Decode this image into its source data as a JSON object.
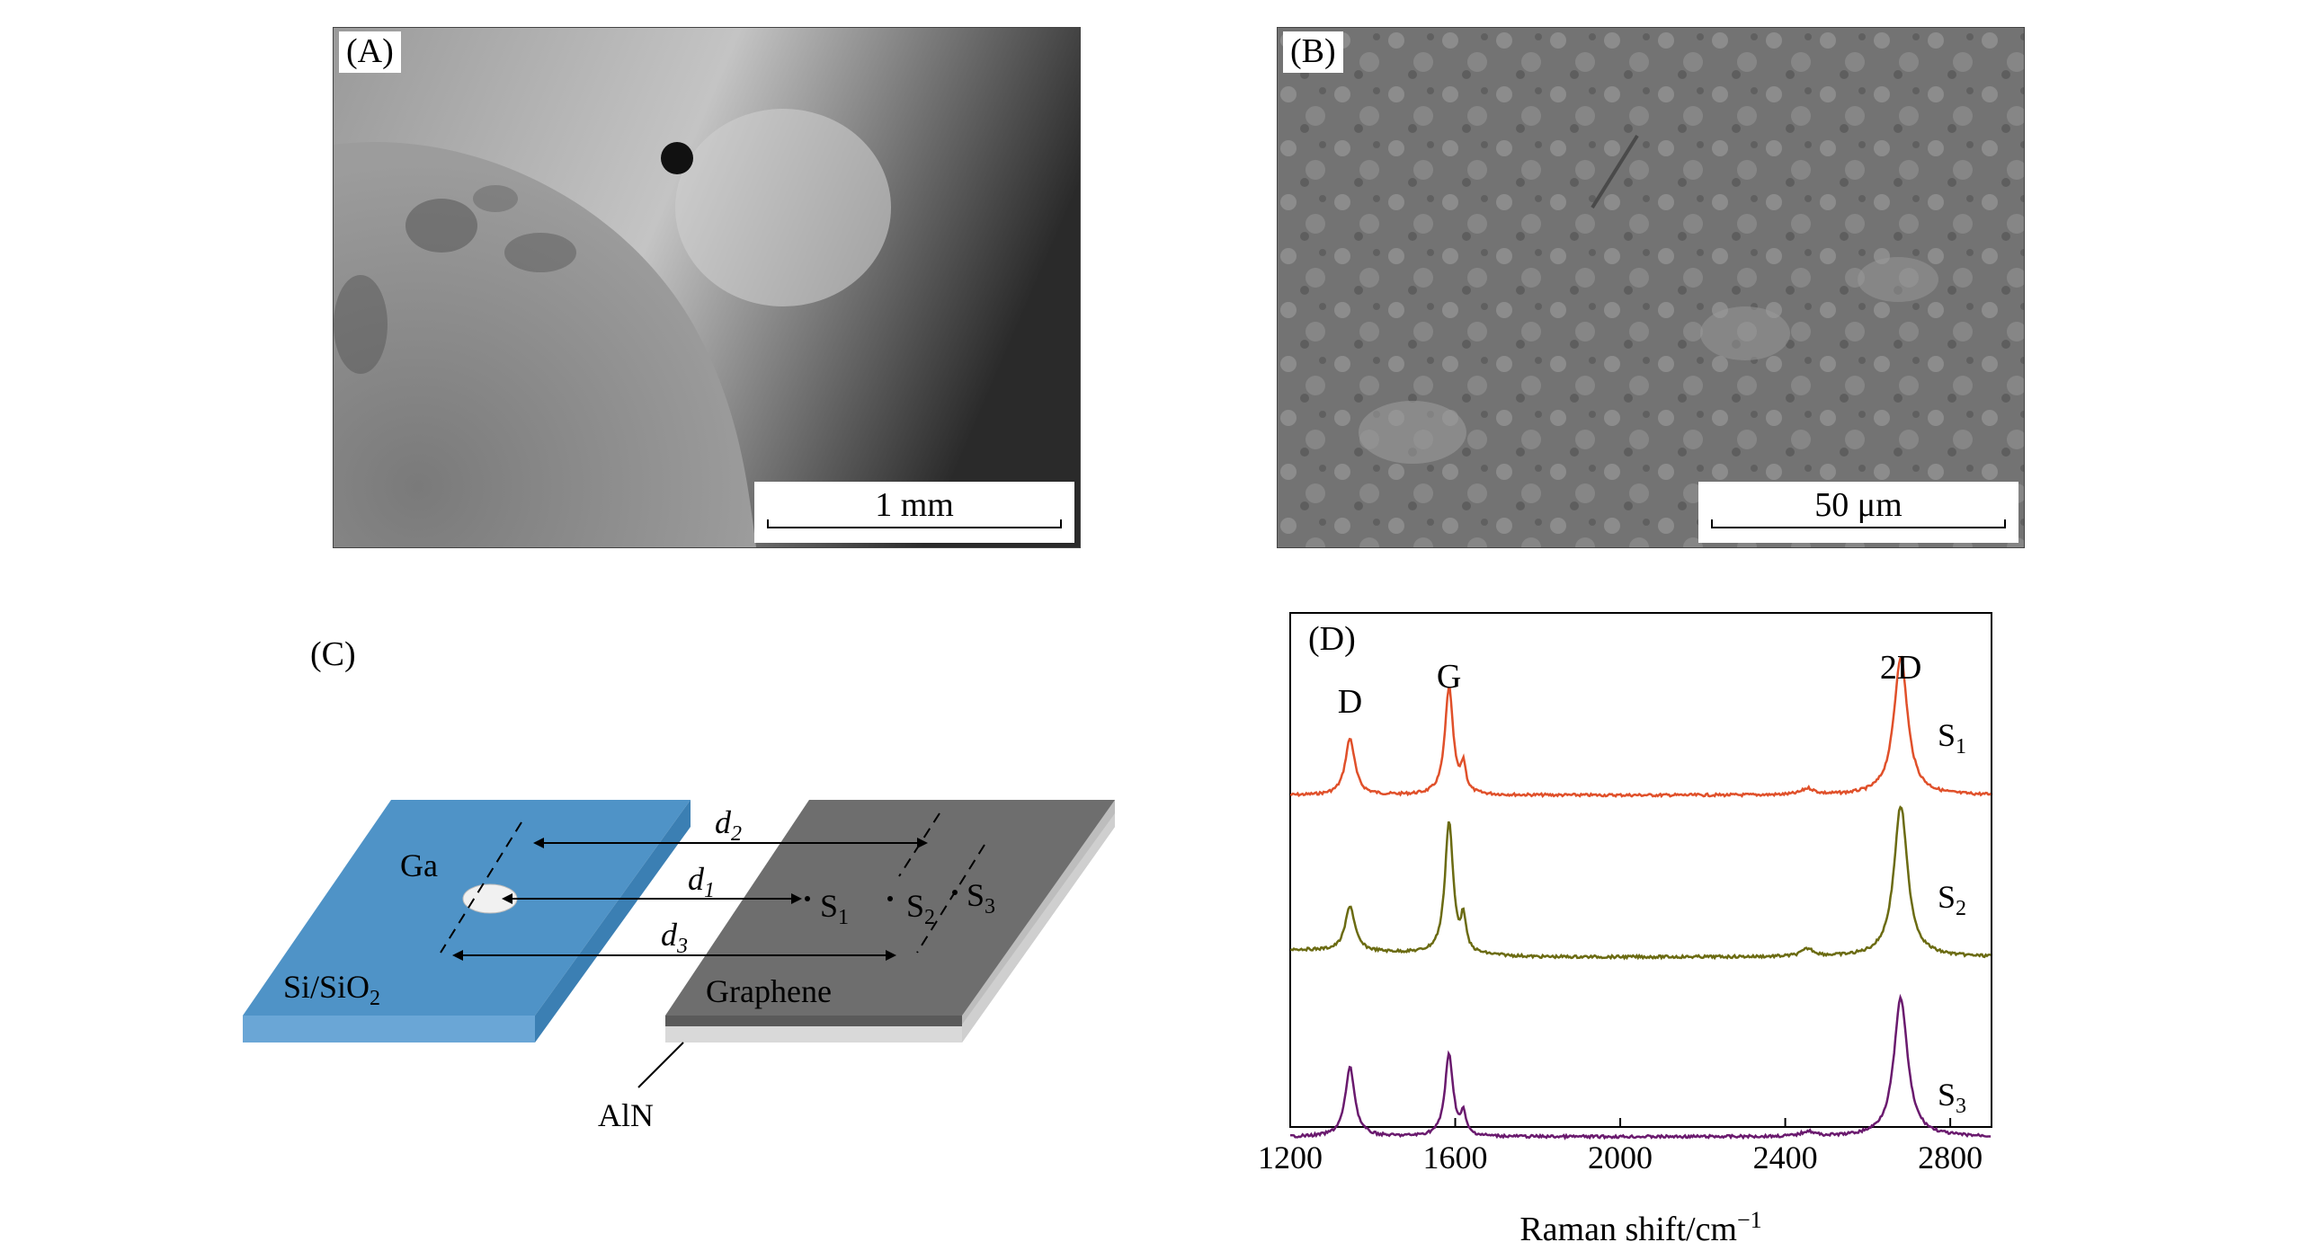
{
  "panel_a": {
    "label": "(A)",
    "scale_bar": "1 mm"
  },
  "panel_b": {
    "label": "(B)",
    "scale_bar": "50 μm"
  },
  "panel_c": {
    "label": "(C)",
    "ga": "Ga",
    "substrate": "Si/SiO",
    "substrate_sub": "2",
    "graphene": "Graphene",
    "aln": "AlN",
    "distances": [
      {
        "base": "d",
        "sub": "2"
      },
      {
        "base": "d",
        "sub": "1"
      },
      {
        "base": "d",
        "sub": "3"
      }
    ],
    "points": [
      {
        "base": "S",
        "sub": "1"
      },
      {
        "base": "S",
        "sub": "2"
      },
      {
        "base": "S",
        "sub": "3"
      }
    ],
    "colors": {
      "substrate": "#4f93c7",
      "graphene": "#6e6e6e",
      "aln": "#d9d9d9"
    }
  },
  "chart_data": {
    "type": "line",
    "panel_label": "(D)",
    "xlabel": "Raman shift/cm",
    "xlabel_sup": "−1",
    "ylabel": "",
    "xlim": [
      1200,
      2900
    ],
    "xticks": [
      1200,
      1600,
      2000,
      2400,
      2800
    ],
    "peak_labels": [
      {
        "text": "D",
        "x": 1345
      },
      {
        "text": "G",
        "x": 1585
      },
      {
        "text": "2D",
        "x": 2680
      }
    ],
    "series": [
      {
        "name": "S1",
        "label_base": "S",
        "label_sub": "1",
        "color": "#e0502a",
        "baseline": 0.0,
        "D": 0.45,
        "G": 0.85,
        "D2": 1.1,
        "bump": 0.05,
        "tilt": 0.0
      },
      {
        "name": "S2",
        "label_base": "S",
        "label_sub": "2",
        "color": "#6b6b12",
        "baseline": 0.0,
        "D": 0.36,
        "G": 1.05,
        "D2": 1.2,
        "bump": 0.06,
        "tilt": 0.2
      },
      {
        "name": "S3",
        "label_base": "S",
        "label_sub": "3",
        "color": "#6a1a6e",
        "baseline": 0.0,
        "D": 0.55,
        "G": 0.65,
        "D2": 1.1,
        "bump": 0.04,
        "tilt": 0.0
      }
    ],
    "grid": false,
    "legend": "none"
  }
}
